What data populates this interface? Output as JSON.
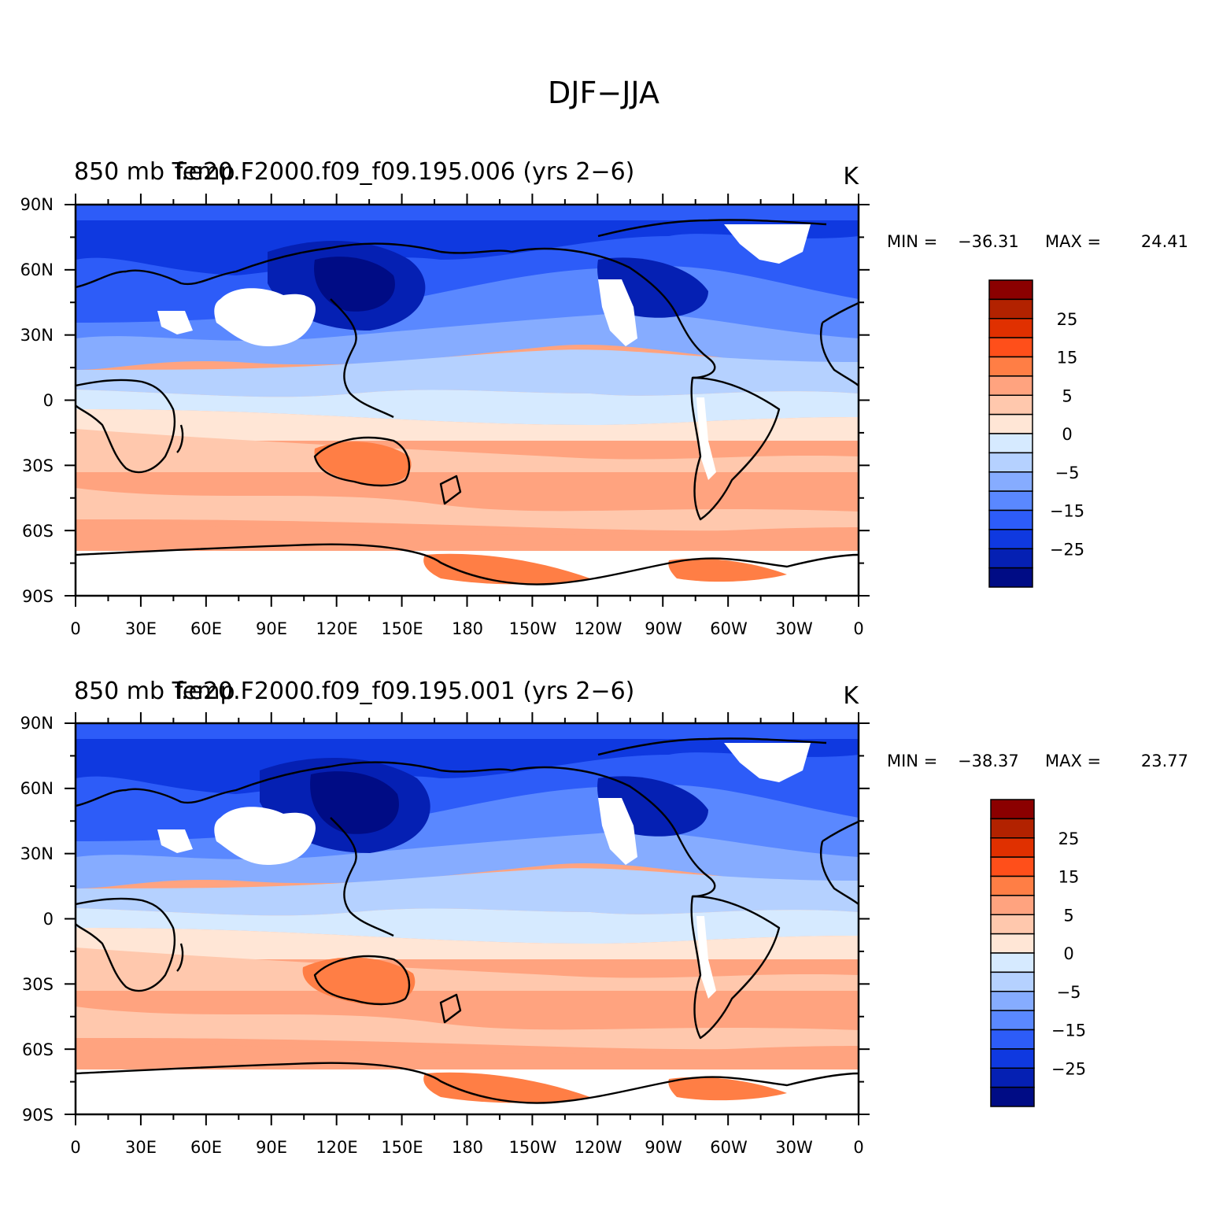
{
  "title": "DJF−JJA",
  "panels": [
    {
      "left_title": "850 mb Temp",
      "center_title": "f.e20.F2000.f09_f09.195.006 (yrs 2−6)",
      "units": "K",
      "min_label": "MIN =",
      "min": "−36.31",
      "max_label": "MAX =",
      "max": "24.41"
    },
    {
      "left_title": "850 mb Temp",
      "center_title": "f.e20.F2000.f09_f09.195.001 (yrs 2−6)",
      "units": "K",
      "min_label": "MIN =",
      "min": "−38.37",
      "max_label": "MAX =",
      "max": "23.77"
    }
  ],
  "lat_labels": [
    "90N",
    "60N",
    "30N",
    "0",
    "30S",
    "60S",
    "90S"
  ],
  "lon_labels": [
    "0",
    "30E",
    "60E",
    "90E",
    "120E",
    "150E",
    "180",
    "150W",
    "120W",
    "90W",
    "60W",
    "30W",
    "0"
  ],
  "colorbar": {
    "colors": [
      "#8b0000",
      "#b22200",
      "#e03000",
      "#ff4f1a",
      "#ff7e45",
      "#ffa37f",
      "#ffc8ad",
      "#ffe6d6",
      "#d6eaff",
      "#b5d1ff",
      "#86acff",
      "#5a88ff",
      "#2d5cf8",
      "#0f39e0",
      "#0520b3",
      "#000c85"
    ],
    "labels": [
      "25",
      "15",
      "5",
      "0",
      "−5",
      "−15",
      "−25"
    ]
  }
}
